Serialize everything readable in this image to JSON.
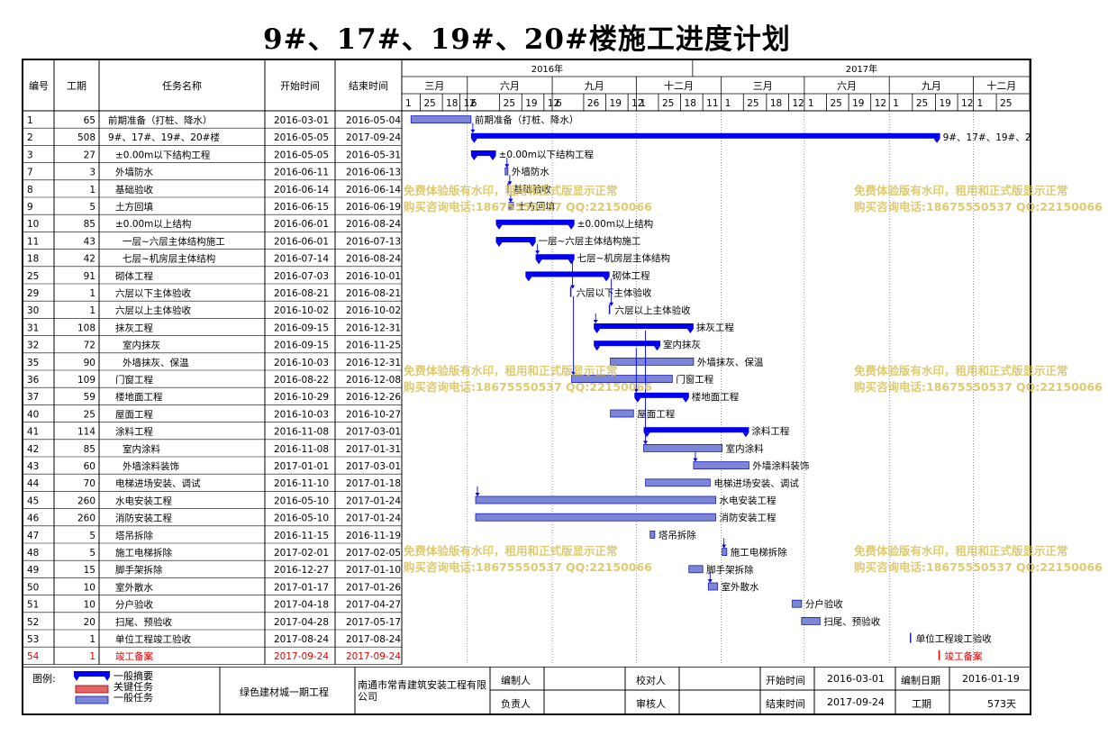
{
  "title": "9#、17#、19#、20#楼施工进度计划",
  "table": {
    "headers": [
      "编号",
      "工期",
      "任务名称",
      "开始时间",
      "结束时间"
    ]
  },
  "timescale": {
    "years": [
      {
        "label": "2016年",
        "start": "2016-02-20",
        "end": "2016-12-31"
      },
      {
        "label": "2017年",
        "start": "2017-01-01",
        "end": "2017-12-31"
      }
    ],
    "quarters": [
      {
        "label": "三月",
        "start": "2016-02-20",
        "end": "2016-05-01"
      },
      {
        "label": "六月",
        "start": "2016-05-01",
        "end": "2016-08-01"
      },
      {
        "label": "九月",
        "start": "2016-08-01",
        "end": "2016-10-31"
      },
      {
        "label": "十二月",
        "start": "2016-10-31",
        "end": "2017-01-31"
      },
      {
        "label": "三月",
        "start": "2017-01-31",
        "end": "2017-05-01"
      },
      {
        "label": "六月",
        "start": "2017-05-01",
        "end": "2017-08-01"
      },
      {
        "label": "九月",
        "start": "2017-08-01",
        "end": "2017-10-31"
      },
      {
        "label": "十二月",
        "start": "2017-10-31",
        "end": "2017-12-31"
      }
    ],
    "ticks": [
      {
        "label": "1",
        "start": "2016-02-20",
        "end": "2016-03-11"
      },
      {
        "label": "25",
        "start": "2016-03-11",
        "end": "2016-04-04"
      },
      {
        "label": "18",
        "start": "2016-04-04",
        "end": "2016-04-23"
      },
      {
        "label": "12",
        "start": "2016-04-23",
        "end": "2016-05-01"
      },
      {
        "label": "6",
        "start": "2016-05-01",
        "end": "2016-06-05"
      },
      {
        "label": "25",
        "start": "2016-06-05",
        "end": "2016-06-29"
      },
      {
        "label": "19",
        "start": "2016-06-29",
        "end": "2016-07-23"
      },
      {
        "label": "12",
        "start": "2016-07-23",
        "end": "2016-08-01"
      },
      {
        "label": "6",
        "start": "2016-08-01",
        "end": "2016-09-04"
      },
      {
        "label": "26",
        "start": "2016-09-04",
        "end": "2016-09-28"
      },
      {
        "label": "19",
        "start": "2016-09-28",
        "end": "2016-10-22"
      },
      {
        "label": "12",
        "start": "2016-10-22",
        "end": "2016-10-31"
      },
      {
        "label": "1",
        "start": "2016-10-31",
        "end": "2016-11-24"
      },
      {
        "label": "25",
        "start": "2016-11-24",
        "end": "2016-12-18"
      },
      {
        "label": "18",
        "start": "2016-12-18",
        "end": "2017-01-11"
      },
      {
        "label": "11",
        "start": "2017-01-11",
        "end": "2017-01-31"
      },
      {
        "label": "1",
        "start": "2017-01-31",
        "end": "2017-02-24"
      },
      {
        "label": "25",
        "start": "2017-02-24",
        "end": "2017-03-21"
      },
      {
        "label": "18",
        "start": "2017-03-21",
        "end": "2017-04-14"
      },
      {
        "label": "12",
        "start": "2017-04-14",
        "end": "2017-05-01"
      },
      {
        "label": "1",
        "start": "2017-05-01",
        "end": "2017-05-25"
      },
      {
        "label": "25",
        "start": "2017-05-25",
        "end": "2017-06-18"
      },
      {
        "label": "19",
        "start": "2017-06-18",
        "end": "2017-07-12"
      },
      {
        "label": "12",
        "start": "2017-07-12",
        "end": "2017-08-01"
      },
      {
        "label": "1",
        "start": "2017-08-01",
        "end": "2017-08-26"
      },
      {
        "label": "25",
        "start": "2017-08-26",
        "end": "2017-09-20"
      },
      {
        "label": "19",
        "start": "2017-09-20",
        "end": "2017-10-14"
      },
      {
        "label": "12",
        "start": "2017-10-14",
        "end": "2017-10-31"
      },
      {
        "label": "1",
        "start": "2017-10-31",
        "end": "2017-11-25"
      },
      {
        "label": "25",
        "start": "2017-11-25",
        "end": "2017-12-31"
      }
    ]
  },
  "chart_data": {
    "type": "gantt",
    "tasks": [
      {
        "id": "1",
        "dur": "65",
        "name": "前期准备（打桩、降水）",
        "start": "2016-03-01",
        "end": "2016-05-04",
        "kind": "normal",
        "indent": 0
      },
      {
        "id": "2",
        "dur": "508",
        "name": "9#、17#、19#、20#楼",
        "start": "2016-05-05",
        "end": "2017-09-24",
        "kind": "summary",
        "indent": 0
      },
      {
        "id": "3",
        "dur": "27",
        "name": "±0.00m以下结构工程",
        "start": "2016-05-05",
        "end": "2016-05-31",
        "kind": "summary",
        "indent": 1
      },
      {
        "id": "7",
        "dur": "3",
        "name": "外墙防水",
        "start": "2016-06-11",
        "end": "2016-06-13",
        "kind": "normal",
        "indent": 1
      },
      {
        "id": "8",
        "dur": "1",
        "name": "基础验收",
        "start": "2016-06-14",
        "end": "2016-06-14",
        "kind": "milestone",
        "indent": 1
      },
      {
        "id": "9",
        "dur": "5",
        "name": "土方回填",
        "start": "2016-06-15",
        "end": "2016-06-19",
        "kind": "normal",
        "indent": 1
      },
      {
        "id": "10",
        "dur": "85",
        "name": "±0.00m以上结构",
        "start": "2016-06-01",
        "end": "2016-08-24",
        "kind": "summary",
        "indent": 1
      },
      {
        "id": "11",
        "dur": "43",
        "name": "一层~六层主体结构施工",
        "start": "2016-06-01",
        "end": "2016-07-13",
        "kind": "summary",
        "indent": 2
      },
      {
        "id": "18",
        "dur": "42",
        "name": "七层~机房层主体结构",
        "start": "2016-07-14",
        "end": "2016-08-24",
        "kind": "summary",
        "indent": 2
      },
      {
        "id": "25",
        "dur": "91",
        "name": "砌体工程",
        "start": "2016-07-03",
        "end": "2016-10-01",
        "kind": "summary",
        "indent": 1
      },
      {
        "id": "29",
        "dur": "1",
        "name": "六层以下主体验收",
        "start": "2016-08-21",
        "end": "2016-08-21",
        "kind": "milestone",
        "indent": 1
      },
      {
        "id": "30",
        "dur": "1",
        "name": "六层以上主体验收",
        "start": "2016-10-02",
        "end": "2016-10-02",
        "kind": "milestone",
        "indent": 1
      },
      {
        "id": "31",
        "dur": "108",
        "name": "抹灰工程",
        "start": "2016-09-15",
        "end": "2016-12-31",
        "kind": "summary",
        "indent": 1
      },
      {
        "id": "32",
        "dur": "72",
        "name": "室内抹灰",
        "start": "2016-09-15",
        "end": "2016-11-25",
        "kind": "summary",
        "indent": 2
      },
      {
        "id": "35",
        "dur": "90",
        "name": "外墙抹灰、保温",
        "start": "2016-10-03",
        "end": "2016-12-31",
        "kind": "normal",
        "indent": 2
      },
      {
        "id": "36",
        "dur": "109",
        "name": "门窗工程",
        "start": "2016-08-22",
        "end": "2016-12-08",
        "kind": "normal",
        "indent": 1
      },
      {
        "id": "37",
        "dur": "59",
        "name": "楼地面工程",
        "start": "2016-10-29",
        "end": "2016-12-26",
        "kind": "summary",
        "indent": 1
      },
      {
        "id": "40",
        "dur": "25",
        "name": "屋面工程",
        "start": "2016-10-03",
        "end": "2016-10-27",
        "kind": "normal",
        "indent": 1
      },
      {
        "id": "41",
        "dur": "114",
        "name": "涂料工程",
        "start": "2016-11-08",
        "end": "2017-03-01",
        "kind": "summary",
        "indent": 1
      },
      {
        "id": "42",
        "dur": "85",
        "name": "室内涂料",
        "start": "2016-11-08",
        "end": "2017-01-31",
        "kind": "normal",
        "indent": 2
      },
      {
        "id": "43",
        "dur": "60",
        "name": "外墙涂料装饰",
        "start": "2017-01-01",
        "end": "2017-03-01",
        "kind": "normal",
        "indent": 2
      },
      {
        "id": "44",
        "dur": "70",
        "name": "电梯进场安装、调试",
        "start": "2016-11-10",
        "end": "2017-01-18",
        "kind": "normal",
        "indent": 1
      },
      {
        "id": "45",
        "dur": "260",
        "name": "水电安装工程",
        "start": "2016-05-10",
        "end": "2017-01-24",
        "kind": "normal",
        "indent": 1
      },
      {
        "id": "46",
        "dur": "260",
        "name": "消防安装工程",
        "start": "2016-05-10",
        "end": "2017-01-24",
        "kind": "normal",
        "indent": 1
      },
      {
        "id": "47",
        "dur": "5",
        "name": "塔吊拆除",
        "start": "2016-11-15",
        "end": "2016-11-19",
        "kind": "normal",
        "indent": 1
      },
      {
        "id": "48",
        "dur": "5",
        "name": "施工电梯拆除",
        "start": "2017-02-01",
        "end": "2017-02-05",
        "kind": "normal",
        "indent": 1
      },
      {
        "id": "49",
        "dur": "15",
        "name": "脚手架拆除",
        "start": "2016-12-27",
        "end": "2017-01-10",
        "kind": "normal",
        "indent": 1
      },
      {
        "id": "50",
        "dur": "10",
        "name": "室外散水",
        "start": "2017-01-17",
        "end": "2017-01-26",
        "kind": "normal",
        "indent": 1
      },
      {
        "id": "51",
        "dur": "10",
        "name": "分户验收",
        "start": "2017-04-18",
        "end": "2017-04-27",
        "kind": "normal",
        "indent": 1
      },
      {
        "id": "52",
        "dur": "20",
        "name": "扫尾、预验收",
        "start": "2017-04-28",
        "end": "2017-05-17",
        "kind": "normal",
        "indent": 1
      },
      {
        "id": "53",
        "dur": "1",
        "name": "单位工程竣工验收",
        "start": "2017-08-24",
        "end": "2017-08-24",
        "kind": "milestone",
        "indent": 1
      },
      {
        "id": "54",
        "dur": "1",
        "name": "竣工备案",
        "start": "2017-09-24",
        "end": "2017-09-24",
        "kind": "critical-milestone",
        "indent": 1
      }
    ],
    "colors": {
      "summary": "#0000ee",
      "normal_fill": "#7b86d6",
      "normal_stroke": "#1a1ab0",
      "critical": "#dd0000",
      "grid": "#000000",
      "link": "#0000ee"
    }
  },
  "watermark": {
    "line1": "免费体验版有水印，租用和正式版显示正常",
    "line2": "购买咨询电话:18675550537 QQ:22150066"
  },
  "footer": {
    "legend_label": "图例:",
    "legend_items": [
      "一般摘要",
      "关键任务",
      "一般任务"
    ],
    "project": "绿色建材城一期工程",
    "company": "南通市常青建筑安装工程有限公司",
    "fields": [
      {
        "label": "编制人",
        "value": ""
      },
      {
        "label": "负责人",
        "value": ""
      },
      {
        "label": "校对人",
        "value": ""
      },
      {
        "label": "审核人",
        "value": ""
      },
      {
        "label": "开始时间",
        "value": "2016-03-01"
      },
      {
        "label": "结束时间",
        "value": "2017-09-24"
      },
      {
        "label": "编制日期",
        "value": "2016-01-19"
      },
      {
        "label": "工期",
        "value": "573天"
      }
    ]
  }
}
